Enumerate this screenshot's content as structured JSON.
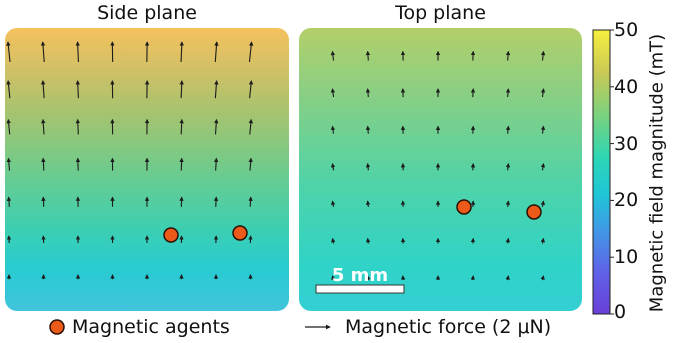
{
  "panels": {
    "side": {
      "title": "Side plane"
    },
    "top": {
      "title": "Top plane",
      "scale_bar_label": "5 mm"
    }
  },
  "colorbar": {
    "label": "Magnetic field magnitude (mT)",
    "ticks": [
      "50",
      "40",
      "30",
      "20",
      "10",
      "0"
    ],
    "min": 0,
    "max": 50
  },
  "legend": {
    "agents": "Magnetic agents",
    "force": "Magnetic force (2 μN)"
  },
  "colors": {
    "agent_fill": "#ec5a1a",
    "agent_stroke": "#2b1006",
    "arrow": "#1c1c1c",
    "scale_bar": "#ffffff"
  }
}
